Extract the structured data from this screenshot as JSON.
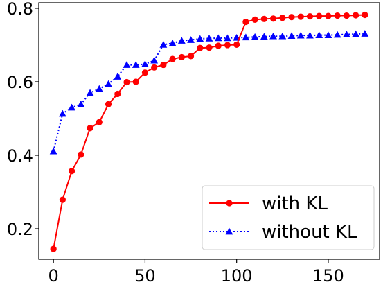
{
  "chart_data": {
    "type": "line",
    "title": "",
    "xlabel": "",
    "ylabel": "",
    "xlim": [
      -8,
      178
    ],
    "ylim": [
      0.117,
      0.815
    ],
    "xticks": [
      0,
      50,
      100,
      150
    ],
    "yticks": [
      0.2,
      0.4,
      0.6,
      0.8
    ],
    "xtick_labels": [
      "0",
      "50",
      "100",
      "150"
    ],
    "ytick_labels": [
      "0.2",
      "0.4",
      "0.6",
      "0.8"
    ],
    "grid": false,
    "legend_position": "lower right",
    "series": [
      {
        "name": "with KL",
        "color": "#ff0000",
        "marker": "circle",
        "line_style": "solid",
        "x": [
          0,
          5,
          10,
          15,
          20,
          25,
          30,
          35,
          40,
          45,
          50,
          55,
          60,
          65,
          70,
          75,
          80,
          85,
          90,
          95,
          100,
          105,
          110,
          115,
          120,
          125,
          130,
          135,
          140,
          145,
          150,
          155,
          160,
          165,
          170
        ],
        "y": [
          0.145,
          0.279,
          0.357,
          0.402,
          0.474,
          0.49,
          0.539,
          0.567,
          0.599,
          0.6,
          0.625,
          0.639,
          0.646,
          0.662,
          0.667,
          0.67,
          0.692,
          0.693,
          0.698,
          0.7,
          0.701,
          0.763,
          0.769,
          0.771,
          0.772,
          0.774,
          0.776,
          0.777,
          0.778,
          0.779,
          0.779,
          0.78,
          0.78,
          0.781,
          0.782
        ]
      },
      {
        "name": "without KL",
        "color": "#0000ff",
        "marker": "triangle",
        "line_style": "dotted",
        "x": [
          0,
          5,
          10,
          15,
          20,
          25,
          30,
          35,
          40,
          45,
          50,
          55,
          60,
          65,
          70,
          75,
          80,
          85,
          90,
          95,
          100,
          105,
          110,
          115,
          120,
          125,
          130,
          135,
          140,
          145,
          150,
          155,
          160,
          165,
          170
        ],
        "y": [
          0.411,
          0.513,
          0.53,
          0.539,
          0.57,
          0.581,
          0.594,
          0.614,
          0.646,
          0.646,
          0.648,
          0.658,
          0.701,
          0.705,
          0.712,
          0.714,
          0.717,
          0.718,
          0.719,
          0.719,
          0.72,
          0.721,
          0.722,
          0.723,
          0.724,
          0.724,
          0.725,
          0.726,
          0.726,
          0.727,
          0.727,
          0.728,
          0.729,
          0.73,
          0.731
        ]
      }
    ]
  }
}
